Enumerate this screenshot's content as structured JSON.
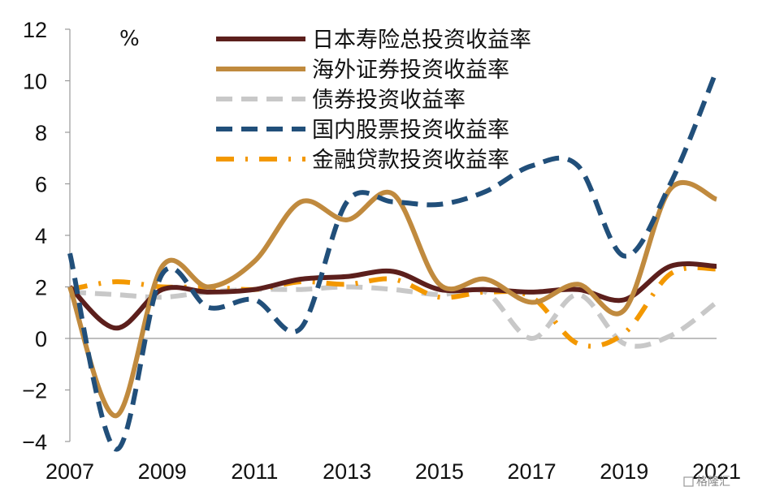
{
  "chart_data": {
    "type": "line",
    "title": "",
    "xlabel": "",
    "ylabel": "",
    "unit_label": "%",
    "xlim": [
      2007,
      2021
    ],
    "ylim": [
      -4,
      12
    ],
    "x_ticks": [
      "2007",
      "2009",
      "2011",
      "2013",
      "2015",
      "2017",
      "2019",
      "2021"
    ],
    "y_ticks": [
      "12",
      "10",
      "8",
      "6",
      "4",
      "2",
      "0",
      "−2",
      "−4"
    ],
    "legend_position": "top",
    "grid": false,
    "series": [
      {
        "name": "日本寿险总投资收益率",
        "color": "#5c1f1c",
        "style": "solid",
        "x": [
          2007,
          2008,
          2009,
          2010,
          2011,
          2012,
          2013,
          2014,
          2015,
          2016,
          2017,
          2018,
          2019,
          2020,
          2021
        ],
        "y": [
          2.0,
          0.4,
          1.9,
          1.8,
          1.9,
          2.3,
          2.4,
          2.6,
          1.9,
          1.9,
          1.8,
          1.9,
          1.5,
          2.8,
          2.8
        ]
      },
      {
        "name": "海外证券投资收益率",
        "color": "#c08a3e",
        "style": "solid",
        "x": [
          2007,
          2008,
          2009,
          2010,
          2011,
          2012,
          2013,
          2014,
          2015,
          2016,
          2017,
          2018,
          2019,
          2020,
          2021
        ],
        "y": [
          2.0,
          -3.0,
          2.8,
          2.0,
          3.0,
          5.3,
          4.6,
          5.6,
          2.1,
          2.3,
          1.4,
          2.1,
          1.1,
          5.8,
          5.4
        ]
      },
      {
        "name": "债券投资收益率",
        "color": "#c8c8c8",
        "style": "dash",
        "x": [
          2007,
          2008,
          2009,
          2010,
          2011,
          2012,
          2013,
          2014,
          2015,
          2016,
          2017,
          2018,
          2019,
          2020,
          2021
        ],
        "y": [
          1.8,
          1.7,
          1.6,
          1.8,
          1.9,
          1.9,
          2.0,
          1.9,
          1.7,
          1.8,
          0.0,
          1.7,
          -0.2,
          0.1,
          1.4
        ]
      },
      {
        "name": "国内股票投资收益率",
        "color": "#214f7a",
        "style": "dash",
        "x": [
          2007,
          2008,
          2009,
          2010,
          2011,
          2012,
          2013,
          2014,
          2015,
          2016,
          2017,
          2018,
          2019,
          2020,
          2021
        ],
        "y": [
          3.3,
          -4.3,
          2.5,
          1.2,
          1.5,
          0.4,
          5.3,
          5.3,
          5.2,
          5.7,
          6.7,
          6.7,
          3.2,
          6.0,
          10.4
        ]
      },
      {
        "name": "金融贷款投资收益率",
        "color": "#f39800",
        "style": "dashdot",
        "x": [
          2007,
          2008,
          2009,
          2010,
          2011,
          2012,
          2013,
          2014,
          2015,
          2016,
          2017,
          2018,
          2019,
          2020,
          2021
        ],
        "y": [
          1.9,
          2.2,
          2.0,
          2.0,
          1.9,
          2.2,
          2.1,
          2.3,
          1.6,
          1.8,
          1.6,
          -0.2,
          0.2,
          2.5,
          2.7
        ]
      }
    ]
  },
  "watermark": "格隆汇"
}
